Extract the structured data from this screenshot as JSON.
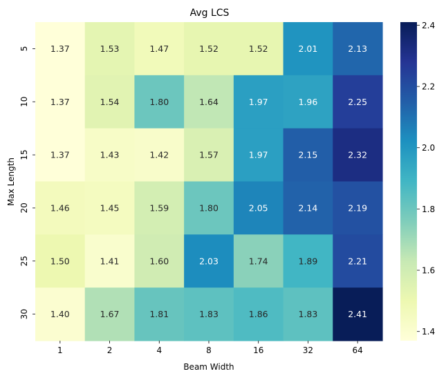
{
  "chart_data": {
    "type": "heatmap",
    "title": "Avg LCS",
    "xlabel": "Beam Width",
    "ylabel": "Max Length",
    "x_categories": [
      "1",
      "2",
      "4",
      "8",
      "16",
      "32",
      "64"
    ],
    "y_categories": [
      "5",
      "10",
      "15",
      "20",
      "25",
      "30"
    ],
    "values": [
      [
        1.37,
        1.53,
        1.47,
        1.52,
        1.52,
        2.01,
        2.13
      ],
      [
        1.37,
        1.54,
        1.8,
        1.64,
        1.97,
        1.96,
        2.25
      ],
      [
        1.37,
        1.43,
        1.42,
        1.57,
        1.97,
        2.15,
        2.32
      ],
      [
        1.46,
        1.45,
        1.59,
        1.8,
        2.05,
        2.14,
        2.19
      ],
      [
        1.5,
        1.41,
        1.6,
        2.03,
        1.74,
        1.89,
        2.21
      ],
      [
        1.4,
        1.67,
        1.81,
        1.83,
        1.86,
        1.83,
        2.41
      ]
    ],
    "value_format": "2 decimals",
    "colormap": "YlGnBu",
    "colorbar": {
      "vmin": 1.37,
      "vmax": 2.41,
      "ticks": [
        "1.4",
        "1.6",
        "1.8",
        "2.0",
        "2.2",
        "2.4"
      ]
    },
    "grid": false
  }
}
